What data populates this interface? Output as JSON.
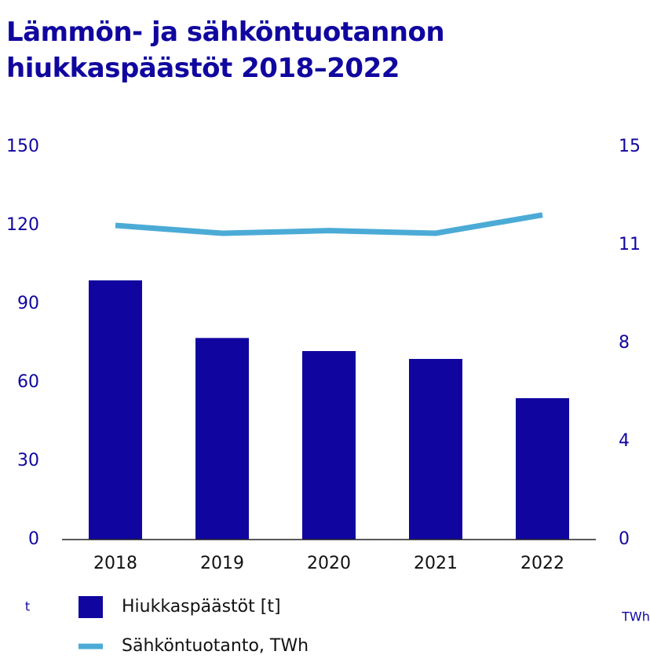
{
  "chart_data": {
    "type": "bar_line",
    "title": "Lämmön- ja sähköntuotannon hiukkaspäästöt 2018–2022",
    "categories": [
      "2018",
      "2019",
      "2020",
      "2021",
      "2022"
    ],
    "series": [
      {
        "name": "Hiukkaspäästöt [t]",
        "color": "#10069f",
        "type": "bar",
        "values": [
          99,
          77,
          72,
          69,
          54
        ]
      },
      {
        "name": "Sähköntuotanto, TWh",
        "color": "#4babd6",
        "type": "line",
        "axis": "y2",
        "values": [
          12.0,
          11.7,
          11.8,
          11.7,
          12.4
        ]
      }
    ],
    "ylabel": "t",
    "y2label": "TWh",
    "ylim": [
      0,
      150
    ],
    "yticks": [
      0,
      30,
      60,
      90,
      120,
      150
    ],
    "y2lim": [
      0,
      15
    ],
    "y2ticks": [
      0,
      {
        "value": 3.75,
        "label": "4"
      },
      {
        "value": 7.5,
        "label": "8"
      },
      {
        "value": 11.25,
        "label": "11"
      },
      15
    ]
  }
}
